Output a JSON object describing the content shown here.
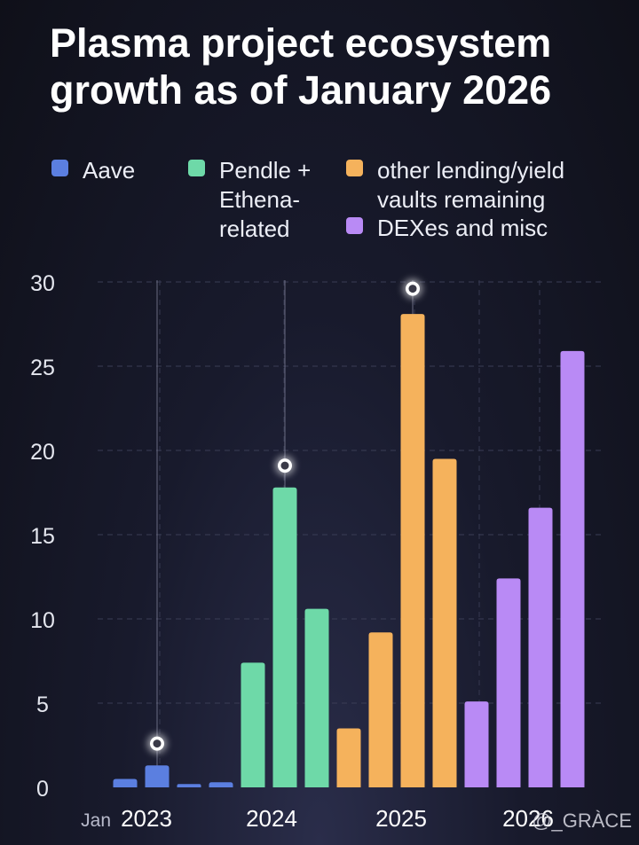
{
  "chart_data": {
    "type": "bar",
    "title": "Plasma project ecosystem growth as of January 2026",
    "xlabel": "",
    "ylabel": "",
    "ylim": [
      0,
      30
    ],
    "yticks": [
      0,
      5,
      10,
      15,
      20,
      25,
      30
    ],
    "x_tick_labels": [
      {
        "prefix": "Jan",
        "label": "2023"
      },
      {
        "prefix": "",
        "label": "2024"
      },
      {
        "prefix": "",
        "label": "2025"
      },
      {
        "prefix": "",
        "label": "2026"
      }
    ],
    "legend_placement": "top",
    "series": [
      {
        "name": "Aave",
        "color": "#5b7fe0",
        "values": [
          0.5,
          1.3,
          0.2,
          0.3
        ]
      },
      {
        "name": "Pendle + Ethena-related",
        "color": "#6ed9a8",
        "values": [
          7.4,
          17.8,
          10.6
        ]
      },
      {
        "name": "other lending/yield vaults remaining",
        "color": "#f5b25c",
        "values": [
          3.5,
          9.2,
          28.1,
          19.5
        ]
      },
      {
        "name": "DEXes and misc",
        "color": "#b98af5",
        "values": [
          5.1,
          12.4,
          16.6,
          25.9
        ]
      }
    ],
    "highlight_markers": [
      {
        "series": "Aave",
        "index": 1,
        "value": 2.6
      },
      {
        "series": "Pendle + Ethena-related",
        "index": 1,
        "value": 19.1
      },
      {
        "series": "other lending/yield vaults remaining",
        "index": 2,
        "value": 29.6
      }
    ]
  },
  "legend": [
    {
      "lines": [
        "Aave"
      ],
      "color": "#5b7fe0"
    },
    {
      "lines": [
        "Pendle +",
        "Ethena-",
        "related"
      ],
      "color": "#6ed9a8"
    },
    {
      "lines": [
        "other lending/yield",
        "vaults remaining"
      ],
      "color": "#f5b25c"
    },
    {
      "lines": [
        "DEXes and misc"
      ],
      "color": "#b98af5"
    }
  ],
  "watermark": "@_GRÀCE"
}
